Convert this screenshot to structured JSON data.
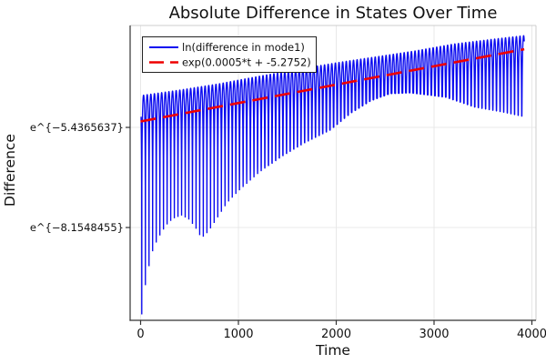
{
  "chart_data": {
    "type": "line",
    "title": "Absolute Difference in States Over Time",
    "xlabel": "Time",
    "ylabel": "Difference",
    "y_scale": "log (axis shows e^{ln} values)",
    "xlim": [
      -107,
      4042
    ],
    "ylim_ln": [
      -10.675,
      -2.669
    ],
    "x_ticks": [
      0,
      1000,
      2000,
      3000,
      4000
    ],
    "y_ticks": [
      {
        "label": "e^{−5.4365637}",
        "ln": -5.4365637
      },
      {
        "label": "e^{−8.1548455}",
        "ln": -8.1548455
      }
    ],
    "grid": true,
    "legend_position": "top-left",
    "series": [
      {
        "name": "ln(difference in mode1)",
        "color": "#0a0af0",
        "style": "solid",
        "description": "rapidly oscillating log-magnitude signal; cusps reach lower envelope, peaks reach upper envelope",
        "oscillation": {
          "cusp_period": 37,
          "first_cusp_t": 12,
          "t_start": 5,
          "t_end": 3922
        },
        "upper_envelope_ln": [
          [
            0,
            -4.57
          ],
          [
            400,
            -4.42
          ],
          [
            800,
            -4.25
          ],
          [
            1200,
            -4.05
          ],
          [
            1600,
            -3.86
          ],
          [
            2000,
            -3.68
          ],
          [
            2400,
            -3.52
          ],
          [
            2800,
            -3.36
          ],
          [
            3200,
            -3.17
          ],
          [
            3600,
            -3.04
          ],
          [
            3925,
            -2.94
          ]
        ],
        "lower_envelope_ln": [
          [
            8,
            -10.6
          ],
          [
            50,
            -9.7
          ],
          [
            90,
            -9.15
          ],
          [
            125,
            -8.78
          ],
          [
            165,
            -8.53
          ],
          [
            205,
            -8.33
          ],
          [
            260,
            -8.1
          ],
          [
            330,
            -7.92
          ],
          [
            420,
            -7.83
          ],
          [
            500,
            -7.95
          ],
          [
            565,
            -8.18
          ],
          [
            623,
            -8.45
          ],
          [
            690,
            -8.28
          ],
          [
            760,
            -8.0
          ],
          [
            884,
            -7.49
          ],
          [
            1000,
            -7.17
          ],
          [
            1210,
            -6.67
          ],
          [
            1440,
            -6.23
          ],
          [
            1675,
            -5.86
          ],
          [
            1940,
            -5.51
          ],
          [
            2150,
            -5.05
          ],
          [
            2350,
            -4.72
          ],
          [
            2550,
            -4.52
          ],
          [
            2750,
            -4.5
          ],
          [
            2950,
            -4.56
          ],
          [
            3120,
            -4.62
          ],
          [
            3420,
            -4.89
          ],
          [
            3700,
            -5.02
          ],
          [
            3925,
            -5.15
          ]
        ]
      },
      {
        "name": "exp(0.0005*t + -5.2752)",
        "color": "#ee0000",
        "style": "dash",
        "fit": {
          "slope_per_t": 0.0005,
          "intercept_ln": -5.2752
        },
        "t_start": 0,
        "t_end": 3922
      }
    ]
  }
}
